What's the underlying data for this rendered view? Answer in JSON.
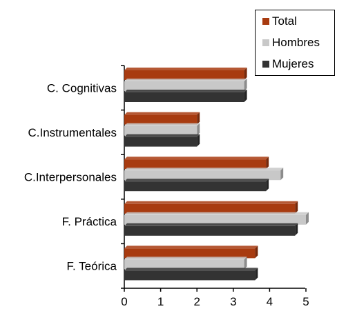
{
  "chart_data": {
    "type": "bar",
    "orientation": "horizontal",
    "categories": [
      "C. Cognitivas",
      "C.Instrumentales",
      "C.Interpersonales",
      "F. Práctica",
      "F. Teórica"
    ],
    "series": [
      {
        "name": "Total",
        "color": "#a83b10",
        "values": [
          3.3,
          2.0,
          3.9,
          4.7,
          3.6
        ]
      },
      {
        "name": "Hombres",
        "color": "#c8c8c8",
        "values": [
          3.3,
          2.0,
          4.3,
          5.0,
          3.3
        ]
      },
      {
        "name": "Mujeres",
        "color": "#333333",
        "values": [
          3.3,
          2.0,
          3.9,
          4.7,
          3.6
        ]
      }
    ],
    "x_ticks": [
      "0",
      "1",
      "2",
      "3",
      "4",
      "5"
    ],
    "xlim": [
      0,
      5
    ],
    "grid": false,
    "legend_position": "top-right"
  }
}
